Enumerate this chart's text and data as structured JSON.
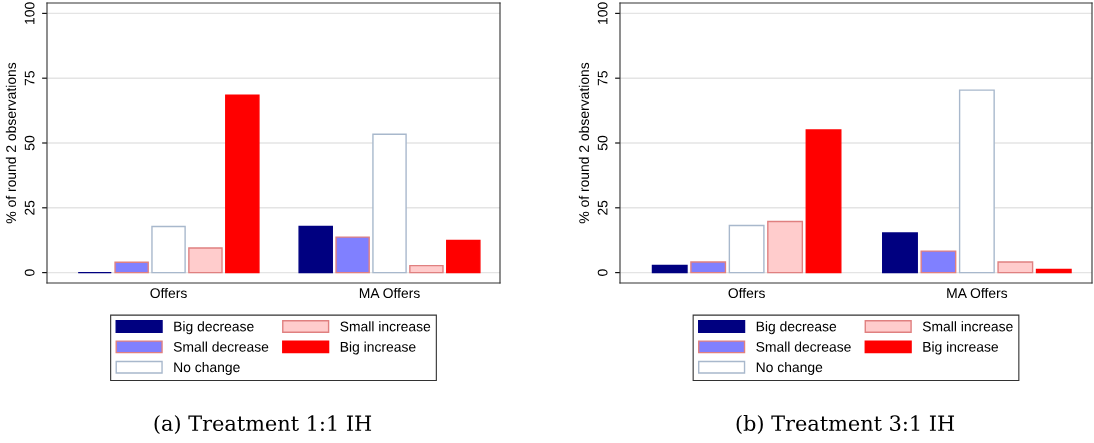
{
  "chart_data": [
    {
      "type": "bar",
      "title": "(a) Treatment 1:1 IH",
      "ylabel": "% of round 2 observations",
      "categories": [
        "Offers",
        "MA Offers"
      ],
      "ylim": [
        -4,
        104
      ],
      "yticks": [
        0,
        25,
        50,
        75,
        100
      ],
      "grid": "y",
      "legend": "bottom",
      "series": [
        {
          "name": "Big decrease",
          "color": "#000080",
          "values": [
            0,
            17.8
          ]
        },
        {
          "name": "Small decrease",
          "color": "#8080ff",
          "values": [
            4.0,
            13.7
          ]
        },
        {
          "name": "No change",
          "color": "#ffffff",
          "values": [
            17.8,
            53.4
          ]
        },
        {
          "name": "Small increase",
          "color": "#ffcccc",
          "values": [
            9.5,
            2.7
          ]
        },
        {
          "name": "Big increase",
          "color": "#ff0000",
          "values": [
            68.4,
            12.4
          ]
        }
      ]
    },
    {
      "type": "bar",
      "title": "(b) Treatment 3:1 IH",
      "ylabel": "% of round 2 observations",
      "categories": [
        "Offers",
        "MA Offers"
      ],
      "ylim": [
        -4,
        104
      ],
      "yticks": [
        0,
        25,
        50,
        75,
        100
      ],
      "grid": "y",
      "legend": "bottom",
      "series": [
        {
          "name": "Big decrease",
          "color": "#000080",
          "values": [
            2.8,
            15.3
          ]
        },
        {
          "name": "Small decrease",
          "color": "#8080ff",
          "values": [
            4.1,
            8.3
          ]
        },
        {
          "name": "No change",
          "color": "#ffffff",
          "values": [
            18.2,
            70.4
          ]
        },
        {
          "name": "Small increase",
          "color": "#ffcccc",
          "values": [
            19.7,
            4.1
          ]
        },
        {
          "name": "Big increase",
          "color": "#ff0000",
          "values": [
            55.0,
            1.2
          ]
        }
      ]
    }
  ]
}
